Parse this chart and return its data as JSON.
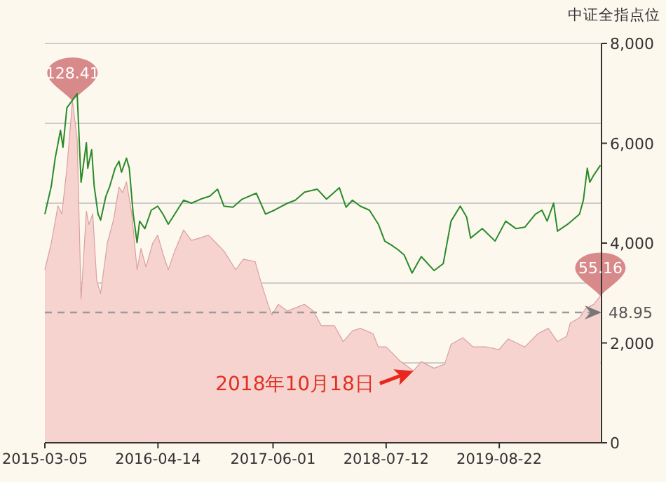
{
  "chart_data": {
    "type": "line",
    "y2label": "中证全指点位",
    "xlim": [
      "2015-03-05",
      "2020-08-23"
    ],
    "xticks": [
      "2015-03-05",
      "2016-04-14",
      "2017-06-01",
      "2018-07-12",
      "2019-08-22"
    ],
    "ylim": [
      0,
      150
    ],
    "yticks": [
      {
        "value": 0,
        "label": null
      },
      {
        "value": 30,
        "label": null
      },
      {
        "value": 60,
        "label": null
      },
      {
        "value": 90,
        "label": null
      },
      {
        "value": 120,
        "label": null
      },
      {
        "value": 150,
        "label": null
      }
    ],
    "y2lim": [
      0,
      8000
    ],
    "y2ticks": [
      0,
      {
        "value": 2000,
        "label": "2,000"
      },
      {
        "value": 4000,
        "label": "4,000"
      },
      {
        "value": 6000,
        "label": "6,000"
      },
      {
        "value": 8000,
        "label": "8,000"
      }
    ],
    "grid": "y",
    "marker": "none",
    "ref_lines": [
      {
        "axis": "y",
        "value": 48.95,
        "label": "48.95",
        "color": "#9a9a9a",
        "line_style": "dashed"
      }
    ],
    "annotations": [
      {
        "text": "2018年10月18日",
        "x": "2018-10-18",
        "y": 27
      }
    ],
    "series": [
      {
        "type": "area",
        "color": "#d9a0a0",
        "x": [
          "2015-03-05",
          "2015-03-28",
          "2015-04-21",
          "2015-05-05",
          "2015-05-23",
          "2015-06-12",
          "2015-06-29",
          "2015-07-13",
          "2015-08-01",
          "2015-08-10",
          "2015-08-24",
          "2015-09-07",
          "2015-09-21",
          "2015-10-15",
          "2015-11-07",
          "2015-11-26",
          "2015-12-09",
          "2015-12-23",
          "2016-01-11",
          "2016-01-30",
          "2016-02-13",
          "2016-03-02",
          "2016-03-26",
          "2016-04-13",
          "2016-05-02",
          "2016-05-21",
          "2016-06-13",
          "2016-07-15",
          "2016-08-12",
          "2016-09-14",
          "2016-10-12",
          "2016-11-09",
          "2016-12-07",
          "2017-01-18",
          "2017-02-15",
          "2017-03-29",
          "2017-04-21",
          "2017-05-14",
          "2017-05-28",
          "2017-06-20",
          "2017-07-23",
          "2017-09-22",
          "2017-10-24",
          "2017-11-21",
          "2018-01-07",
          "2018-02-08",
          "2018-03-13",
          "2018-04-10",
          "2018-05-26",
          "2018-06-14",
          "2018-07-12",
          "2018-08-28",
          "2018-10-18",
          "2018-11-15",
          "2018-12-31",
          "2019-02-07",
          "2019-03-02",
          "2019-04-13",
          "2019-05-20",
          "2019-07-06",
          "2019-08-21",
          "2019-09-23",
          "2019-11-22",
          "2020-01-08",
          "2020-02-14",
          "2020-03-18",
          "2020-04-20",
          "2020-05-03",
          "2020-06-05",
          "2020-06-28",
          "2020-07-26",
          "2020-08-19"
        ],
        "values": [
          65,
          75,
          89,
          86,
          103,
          128.41,
          114,
          54,
          87,
          82,
          86,
          61,
          56,
          75,
          84,
          96,
          94,
          98,
          86,
          65,
          73,
          66,
          75,
          78,
          71,
          65,
          72,
          80,
          76,
          77,
          78,
          75,
          72,
          65,
          69,
          68,
          59.5,
          52,
          48,
          52,
          49.5,
          52,
          49.5,
          44,
          44,
          38,
          42,
          43,
          41,
          36,
          36,
          31,
          27,
          30.5,
          28,
          29.5,
          37,
          39.5,
          36,
          36,
          35,
          39,
          36,
          41,
          43,
          38,
          40,
          45,
          47,
          50.5,
          52,
          55.16
        ],
        "value_labels": [
          null,
          null,
          null,
          null,
          null,
          "128.41",
          null,
          null,
          null,
          null,
          null,
          null,
          null,
          null,
          null,
          null,
          null,
          null,
          null,
          null,
          null,
          null,
          null,
          null,
          null,
          null,
          null,
          null,
          null,
          null,
          null,
          null,
          null,
          null,
          null,
          null,
          null,
          null,
          null,
          null,
          null,
          null,
          null,
          null,
          null,
          null,
          null,
          null,
          null,
          null,
          null,
          null,
          null,
          null,
          null,
          null,
          null,
          null,
          null,
          null,
          null,
          null,
          null,
          null,
          null,
          null,
          null,
          null,
          null,
          null,
          null,
          "55.16"
        ]
      },
      {
        "type": "line",
        "axis": "y2",
        "color": "#2a8a2a",
        "x": [
          "2015-03-05",
          "2015-03-28",
          "2015-04-11",
          "2015-04-30",
          "2015-05-09",
          "2015-05-23",
          "2015-06-29",
          "2015-07-13",
          "2015-08-01",
          "2015-08-06",
          "2015-08-20",
          "2015-08-29",
          "2015-09-12",
          "2015-09-21",
          "2015-10-10",
          "2015-10-24",
          "2015-11-12",
          "2015-11-26",
          "2015-12-05",
          "2015-12-23",
          "2016-01-02",
          "2016-01-16",
          "2016-01-30",
          "2016-02-08",
          "2016-02-27",
          "2016-03-21",
          "2016-04-13",
          "2016-05-02",
          "2016-05-21",
          "2016-06-13",
          "2016-07-15",
          "2016-08-12",
          "2016-09-14",
          "2016-10-17",
          "2016-11-14",
          "2016-12-07",
          "2017-01-08",
          "2017-02-10",
          "2017-04-02",
          "2017-05-05",
          "2017-06-06",
          "2017-07-23",
          "2017-08-20",
          "2017-09-22",
          "2017-11-07",
          "2017-12-10",
          "2018-01-25",
          "2018-02-18",
          "2018-03-13",
          "2018-04-10",
          "2018-05-13",
          "2018-06-14",
          "2018-07-07",
          "2018-07-31",
          "2018-08-23",
          "2018-09-15",
          "2018-10-13",
          "2018-11-15",
          "2018-12-31",
          "2019-02-02",
          "2019-03-02",
          "2019-04-04",
          "2019-04-27",
          "2019-05-11",
          "2019-06-22",
          "2019-08-07",
          "2019-09-14",
          "2019-10-21",
          "2019-11-22",
          "2019-12-30",
          "2020-01-22",
          "2020-02-10",
          "2020-03-04",
          "2020-03-18",
          "2020-04-24",
          "2020-06-05",
          "2020-06-19",
          "2020-07-03",
          "2020-07-12",
          "2020-07-26",
          "2020-08-19"
        ],
        "values": [
          4580,
          5140,
          5700,
          6260,
          5920,
          6710,
          6990,
          5220,
          6010,
          5500,
          5870,
          5140,
          4580,
          4460,
          4940,
          5140,
          5500,
          5640,
          5420,
          5700,
          5500,
          4580,
          4010,
          4440,
          4290,
          4660,
          4740,
          4580,
          4380,
          4580,
          4860,
          4800,
          4880,
          4940,
          5080,
          4740,
          4720,
          4880,
          5000,
          4580,
          4660,
          4800,
          4860,
          5020,
          5080,
          4880,
          5110,
          4720,
          4860,
          4740,
          4660,
          4380,
          4040,
          3960,
          3870,
          3760,
          3400,
          3730,
          3450,
          3590,
          4440,
          4740,
          4520,
          4100,
          4290,
          4040,
          4440,
          4290,
          4320,
          4580,
          4660,
          4440,
          4800,
          4240,
          4380,
          4580,
          4860,
          5500,
          5220,
          5360,
          5560
        ]
      }
    ]
  }
}
